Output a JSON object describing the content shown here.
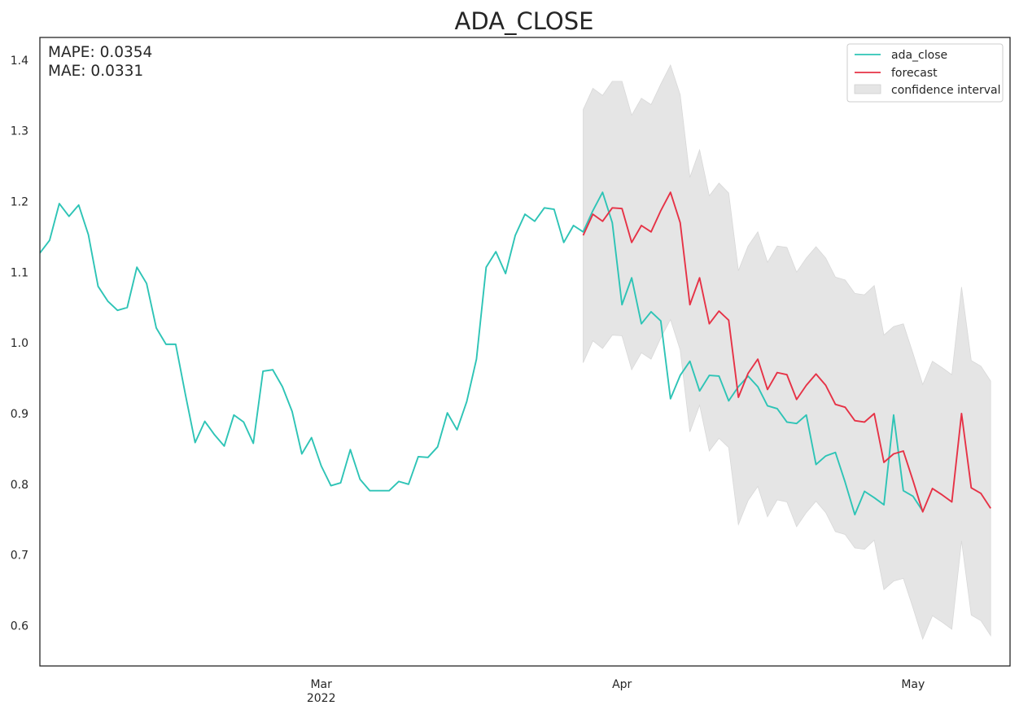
{
  "chart_data": {
    "type": "line",
    "title": "ADA_CLOSE",
    "xlabel": "",
    "ylabel": "",
    "grid": false,
    "legend_placement": "top-right",
    "x_start": "2022-01-31",
    "x_end": "2022-05-11",
    "xlim": [
      "2022-01-31",
      "2022-05-11"
    ],
    "ylim": [
      0.543,
      1.432
    ],
    "y_ticks": [
      0.6,
      0.7,
      0.8,
      0.9,
      1.0,
      1.1,
      1.2,
      1.3,
      1.4
    ],
    "y_tick_labels": [
      "0.6",
      "0.7",
      "0.8",
      "0.9",
      "1.0",
      "1.1",
      "1.2",
      "1.3",
      "1.4"
    ],
    "x_ticks": [
      {
        "date": "2022-03-01",
        "label": "Mar",
        "sublabel": "2022"
      },
      {
        "date": "2022-04-01",
        "label": "Apr",
        "sublabel": ""
      },
      {
        "date": "2022-05-01",
        "label": "May",
        "sublabel": ""
      }
    ],
    "annotations": [
      "MAPE: 0.0354",
      "MAE: 0.0331"
    ],
    "legend": [
      {
        "label": "ada_close",
        "kind": "line",
        "color": "#2ec4b6"
      },
      {
        "label": "forecast",
        "kind": "line",
        "color": "#e63246"
      },
      {
        "label": "confidence interval",
        "kind": "patch",
        "color": "#e5e5e5"
      }
    ],
    "series": [
      {
        "name": "ada_close",
        "color": "#2ec4b6",
        "start_date": "2022-01-31",
        "values": [
          1.127,
          1.145,
          1.197,
          1.179,
          1.195,
          1.153,
          1.08,
          1.059,
          1.046,
          1.05,
          1.107,
          1.084,
          1.021,
          0.998,
          0.998,
          0.927,
          0.859,
          0.889,
          0.87,
          0.854,
          0.898,
          0.888,
          0.858,
          0.96,
          0.962,
          0.938,
          0.903,
          0.843,
          0.866,
          0.826,
          0.798,
          0.802,
          0.849,
          0.807,
          0.791,
          0.791,
          0.791,
          0.804,
          0.8,
          0.839,
          0.838,
          0.853,
          0.901,
          0.877,
          0.917,
          0.977,
          1.107,
          1.129,
          1.098,
          1.152,
          1.182,
          1.172,
          1.191,
          1.189,
          1.142,
          1.166,
          1.157,
          1.187,
          1.213,
          1.17,
          1.054,
          1.092,
          1.027,
          1.044,
          1.031,
          0.921,
          0.954,
          0.974,
          0.932,
          0.954,
          0.953,
          0.918,
          0.938,
          0.953,
          0.938,
          0.911,
          0.907,
          0.888,
          0.886,
          0.898,
          0.828,
          0.84,
          0.845,
          0.803,
          0.757,
          0.79,
          0.781,
          0.771,
          0.898,
          0.791,
          0.783,
          0.762
        ]
      },
      {
        "name": "forecast",
        "color": "#e63246",
        "start_date": "2022-03-28",
        "values": [
          1.152,
          1.182,
          1.172,
          1.191,
          1.19,
          1.142,
          1.166,
          1.157,
          1.187,
          1.213,
          1.17,
          1.054,
          1.092,
          1.027,
          1.045,
          1.032,
          0.923,
          0.957,
          0.977,
          0.934,
          0.958,
          0.955,
          0.92,
          0.94,
          0.956,
          0.94,
          0.913,
          0.909,
          0.89,
          0.888,
          0.9,
          0.831,
          0.843,
          0.847,
          0.805,
          0.761,
          0.794,
          0.785,
          0.775,
          0.9,
          0.795,
          0.787,
          0.766
        ]
      }
    ],
    "confidence_interval": {
      "name": "confidence interval",
      "color": "#e5e5e5",
      "start_date": "2022-03-28",
      "upper": [
        1.33,
        1.36,
        1.35,
        1.37,
        1.37,
        1.322,
        1.346,
        1.337,
        1.366,
        1.393,
        1.351,
        1.234,
        1.273,
        1.208,
        1.226,
        1.212,
        1.102,
        1.137,
        1.157,
        1.114,
        1.137,
        1.135,
        1.1,
        1.12,
        1.136,
        1.12,
        1.093,
        1.089,
        1.07,
        1.068,
        1.081,
        1.011,
        1.023,
        1.027,
        0.985,
        0.941,
        0.974,
        0.965,
        0.955,
        1.079,
        0.975,
        0.967,
        0.946
      ],
      "lower": [
        0.972,
        1.003,
        0.992,
        1.011,
        1.01,
        0.962,
        0.986,
        0.977,
        1.007,
        1.033,
        0.99,
        0.874,
        0.912,
        0.847,
        0.865,
        0.852,
        0.743,
        0.777,
        0.797,
        0.754,
        0.778,
        0.775,
        0.74,
        0.76,
        0.776,
        0.76,
        0.733,
        0.729,
        0.71,
        0.708,
        0.721,
        0.651,
        0.663,
        0.667,
        0.625,
        0.581,
        0.614,
        0.605,
        0.595,
        0.72,
        0.615,
        0.607,
        0.586
      ]
    }
  }
}
